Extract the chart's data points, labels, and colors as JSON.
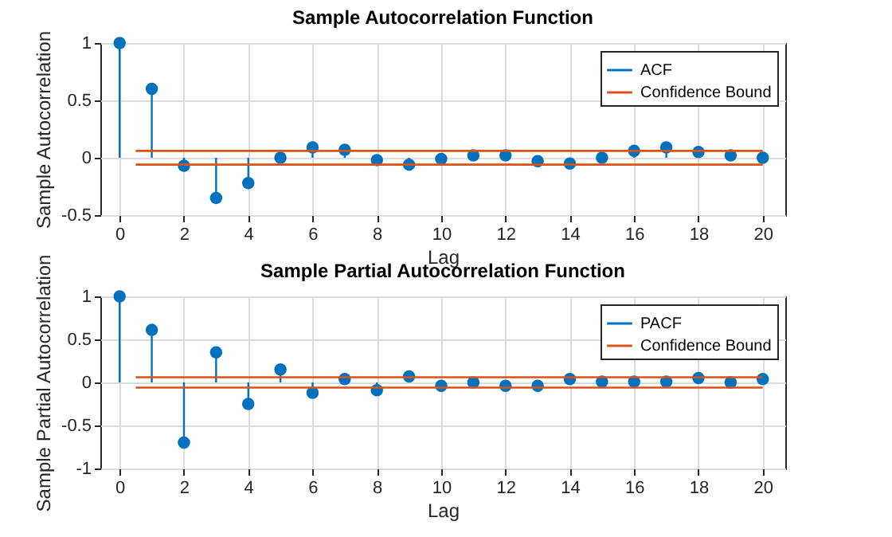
{
  "chart_data": [
    {
      "type": "lollipop",
      "title": "Sample Autocorrelation Function",
      "xlabel": "Lag",
      "ylabel": "Sample Autocorrelation",
      "xlim": [
        -0.6,
        20.7
      ],
      "xticks": [
        0,
        2,
        4,
        6,
        8,
        10,
        12,
        14,
        16,
        18,
        20
      ],
      "ylim": [
        -0.5,
        1
      ],
      "yticks": [
        -0.5,
        0,
        0.5,
        1
      ],
      "grid": true,
      "legend": "top right",
      "series": [
        {
          "name": "ACF",
          "color": "#0072bd",
          "marker": "circle",
          "x": [
            0,
            1,
            2,
            3,
            4,
            5,
            6,
            7,
            8,
            9,
            10,
            11,
            12,
            13,
            14,
            15,
            16,
            17,
            18,
            19,
            20
          ],
          "values": [
            1,
            0.6,
            -0.07,
            -0.35,
            -0.22,
            0,
            0.09,
            0.07,
            -0.02,
            -0.06,
            -0.01,
            0.02,
            0.02,
            -0.03,
            -0.05,
            0,
            0.06,
            0.09,
            0.05,
            0.02,
            0
          ]
        },
        {
          "type": "line",
          "name": "Confidence Bound",
          "color": "#d95319",
          "x": [
            0.5,
            20
          ],
          "values": [
            0.06,
            0.06
          ]
        },
        {
          "type": "line",
          "color": "#d95319",
          "x": [
            0.5,
            20
          ],
          "values": [
            -0.06,
            -0.06
          ]
        }
      ]
    },
    {
      "type": "lollipop",
      "title": "Sample Partial Autocorrelation Function",
      "xlabel": "Lag",
      "ylabel": "Sample Partial Autocorrelation",
      "xlim": [
        -0.6,
        20.7
      ],
      "xticks": [
        0,
        2,
        4,
        6,
        8,
        10,
        12,
        14,
        16,
        18,
        20
      ],
      "ylim": [
        -1,
        1
      ],
      "yticks": [
        -1,
        -0.5,
        0,
        0.5,
        1
      ],
      "grid": true,
      "legend": "top right",
      "series": [
        {
          "name": "PACF",
          "color": "#0072bd",
          "marker": "circle",
          "x": [
            0,
            1,
            2,
            3,
            4,
            5,
            6,
            7,
            8,
            9,
            10,
            11,
            12,
            13,
            14,
            15,
            16,
            17,
            18,
            19,
            20
          ],
          "values": [
            1,
            0.61,
            -0.7,
            0.35,
            -0.25,
            0.15,
            -0.12,
            0.04,
            -0.09,
            0.07,
            -0.04,
            0,
            -0.04,
            -0.04,
            0.04,
            0.01,
            0.01,
            0.01,
            0.05,
            0,
            0.04
          ]
        },
        {
          "type": "line",
          "name": "Confidence Bound",
          "color": "#d95319",
          "x": [
            0.5,
            20
          ],
          "values": [
            0.06,
            0.06
          ]
        },
        {
          "type": "line",
          "color": "#d95319",
          "x": [
            0.5,
            20
          ],
          "values": [
            -0.06,
            -0.06
          ]
        }
      ]
    }
  ]
}
